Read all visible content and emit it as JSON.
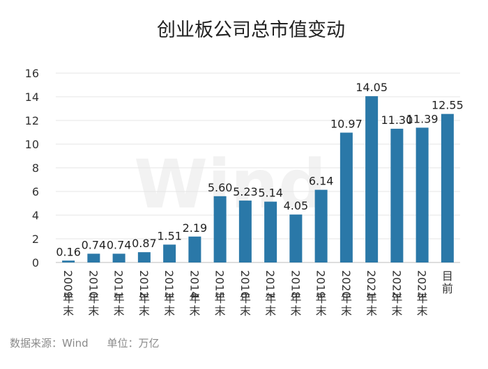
{
  "chart_data": {
    "type": "bar",
    "title": "创业板公司总市值变动",
    "categories": [
      "2009年末",
      "2010年末",
      "2011年末",
      "2012年末",
      "2013年末",
      "2014年末",
      "2015年末",
      "2016年末",
      "2017年末",
      "2018年末",
      "2019年末",
      "2020年末",
      "2021年末",
      "2022年末",
      "2023年末",
      "目前"
    ],
    "values": [
      0.16,
      0.74,
      0.74,
      0.87,
      1.51,
      2.19,
      5.6,
      5.23,
      5.14,
      4.05,
      6.14,
      10.97,
      14.05,
      11.3,
      11.39,
      12.55
    ],
    "value_labels": [
      "0.16",
      "0.74",
      "0.74",
      "0.87",
      "1.51",
      "2.19",
      "5.60",
      "5.23",
      "5.14",
      "4.05",
      "6.14",
      "10.97",
      "14.05",
      "11.30",
      "11.39",
      "12.55"
    ],
    "ylim": [
      0,
      16
    ],
    "yticks": [
      "0",
      "2",
      "4",
      "6",
      "8",
      "10",
      "12",
      "14",
      "16"
    ],
    "grid": true,
    "bar_color": "#2a78a8",
    "watermark": "Wind"
  },
  "footer": {
    "source": "数据来源：Wind",
    "unit": "单位：万亿"
  }
}
